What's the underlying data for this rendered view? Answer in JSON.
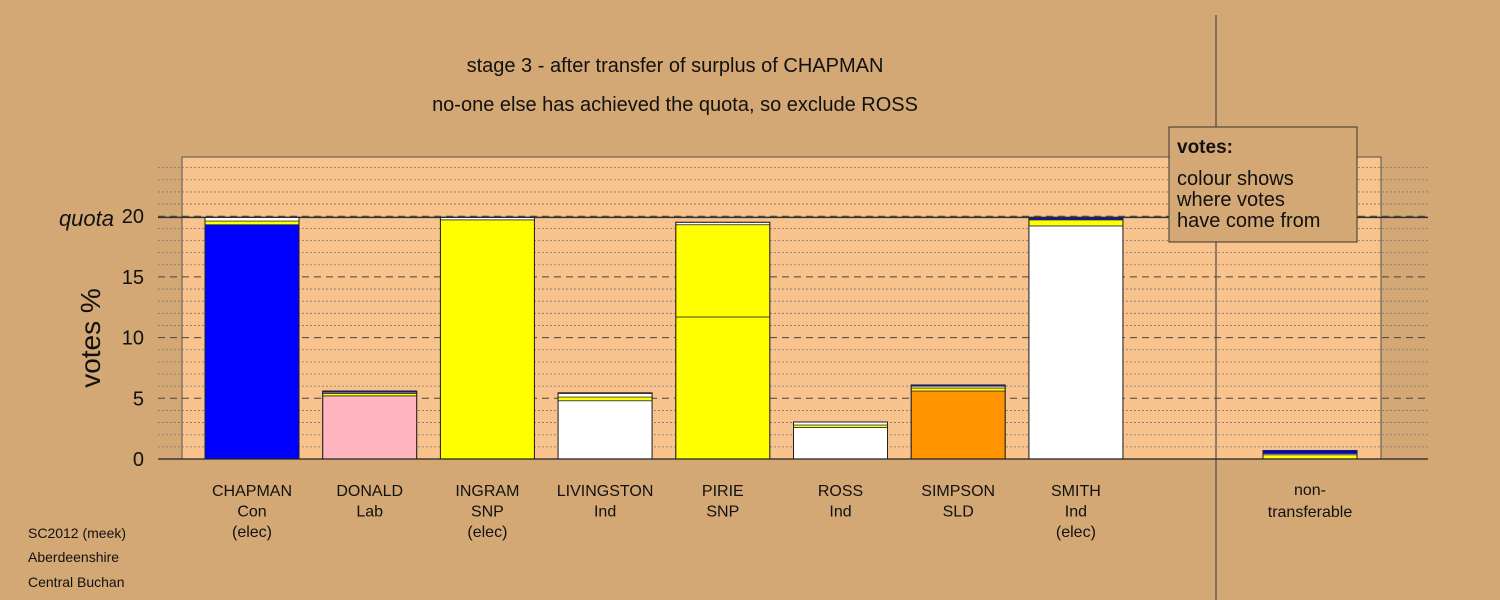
{
  "colors": {
    "background": "#d4a874",
    "panel": "#f8c38c",
    "Con": "#0000ff",
    "Lab": "#ffb6c1",
    "SNP": "#ffff00",
    "Ind": "#ffffff",
    "SLD": "#ff9400",
    "edge": "#333333"
  },
  "chart_data": {
    "type": "bar",
    "title": "stage 3 - after transfer of surplus of CHAPMAN",
    "subtitle": "no-one else has achieved the quota, so exclude ROSS",
    "ylabel": "votes %",
    "quota_label": "quota",
    "quota": 19.9,
    "ylim": [
      0,
      25
    ],
    "yticks": [
      0,
      5,
      10,
      15,
      20
    ],
    "grid": true,
    "legend": {
      "title": "votes:",
      "lines": [
        "colour shows",
        "where votes",
        "have come from"
      ],
      "placement": "top-right"
    },
    "candidates": [
      {
        "name": "CHAPMAN",
        "party": "Con",
        "status": "(elec)",
        "segments": [
          {
            "from": "Con",
            "value": 19.3
          },
          {
            "from": "SNP",
            "value": 0.3
          },
          {
            "from": "Ind",
            "value": 0.3
          }
        ]
      },
      {
        "name": "DONALD",
        "party": "Lab",
        "status": "",
        "segments": [
          {
            "from": "Lab",
            "value": 5.2
          },
          {
            "from": "SNP",
            "value": 0.2
          },
          {
            "from": "Ind",
            "value": 0.1
          },
          {
            "from": "Con",
            "value": 0.1
          }
        ]
      },
      {
        "name": "INGRAM",
        "party": "SNP",
        "status": "(elec)",
        "segments": [
          {
            "from": "SNP",
            "value": 19.7
          },
          {
            "from": "Ind",
            "value": 0.2
          }
        ]
      },
      {
        "name": "LIVINGSTON",
        "party": "Ind",
        "status": "",
        "segments": [
          {
            "from": "Ind",
            "value": 4.8
          },
          {
            "from": "SNP",
            "value": 0.3
          },
          {
            "from": "Ind",
            "value": 0.3
          },
          {
            "from": "Con",
            "value": 0.05
          }
        ]
      },
      {
        "name": "PIRIE",
        "party": "SNP",
        "status": "",
        "segments": [
          {
            "from": "SNP",
            "value": 11.7
          },
          {
            "from": "SNP",
            "value": 7.6
          },
          {
            "from": "Ind",
            "value": 0.2
          }
        ]
      },
      {
        "name": "ROSS",
        "party": "Ind",
        "status": "",
        "segments": [
          {
            "from": "Ind",
            "value": 2.6
          },
          {
            "from": "SNP",
            "value": 0.2
          },
          {
            "from": "Ind",
            "value": 0.25
          }
        ]
      },
      {
        "name": "SIMPSON",
        "party": "SLD",
        "status": "",
        "segments": [
          {
            "from": "SLD",
            "value": 5.6
          },
          {
            "from": "SNP",
            "value": 0.25
          },
          {
            "from": "Ind",
            "value": 0.15
          },
          {
            "from": "Con",
            "value": 0.1
          }
        ]
      },
      {
        "name": "SMITH",
        "party": "Ind",
        "status": "(elec)",
        "segments": [
          {
            "from": "Ind",
            "value": 19.2
          },
          {
            "from": "SNP",
            "value": 0.5
          },
          {
            "from": "Con",
            "value": 0.15
          }
        ]
      }
    ],
    "nontransferable": {
      "label_line1": "non-",
      "label_line2": "transferable",
      "segments": [
        {
          "from": "SNP",
          "value": 0.35
        },
        {
          "from": "Ind",
          "value": 0.1
        },
        {
          "from": "Con",
          "value": 0.25
        }
      ]
    }
  },
  "footer": {
    "line1": "SC2012 (meek)",
    "line2": "Aberdeenshire",
    "line3": "Central Buchan"
  }
}
